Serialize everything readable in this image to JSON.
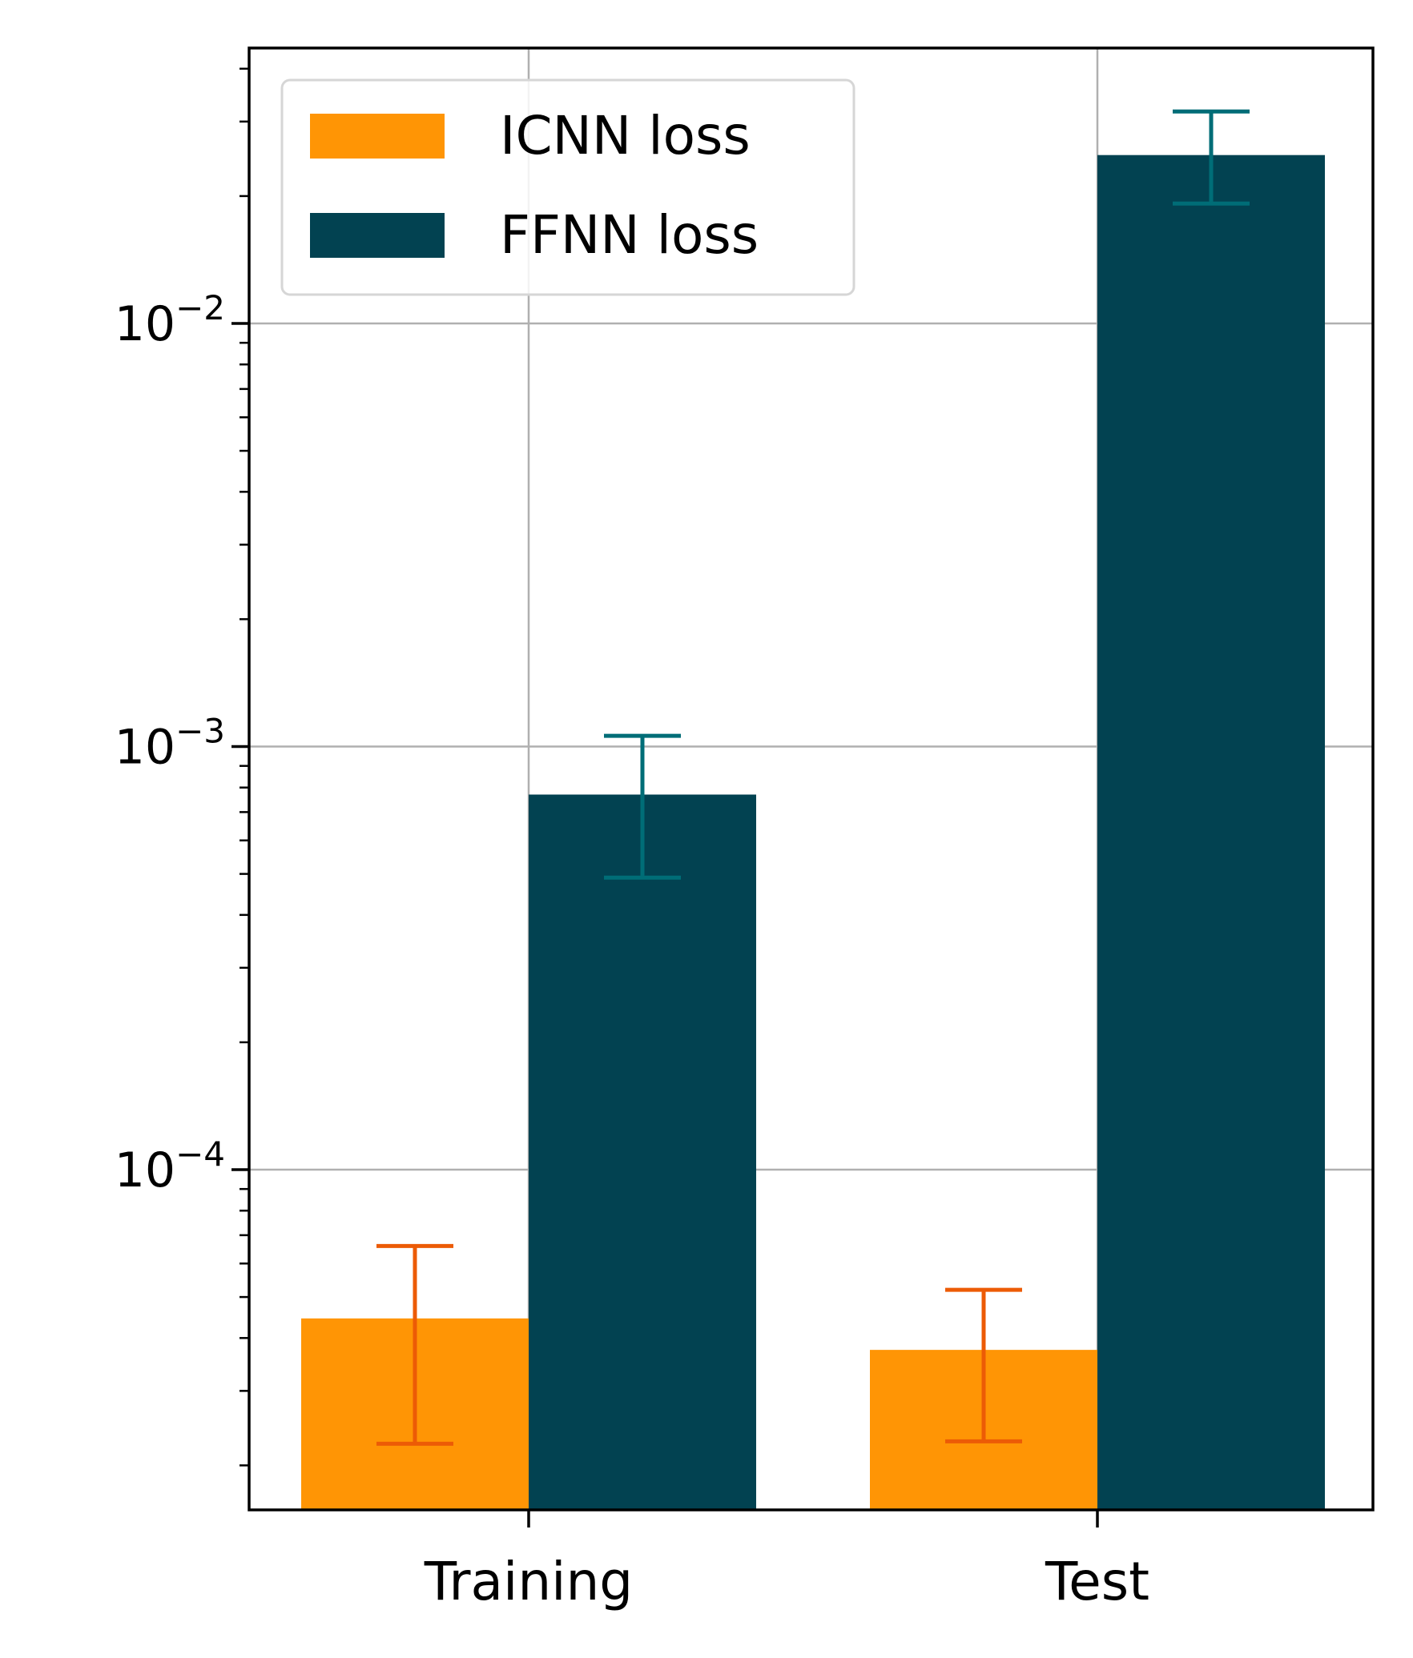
{
  "chart_data": {
    "type": "bar",
    "categories": [
      "Training",
      "Test"
    ],
    "series": [
      {
        "name": "ICNN loss",
        "color": "#ff9505",
        "error_color": "#ec5b06",
        "values": [
          4.45e-05,
          3.75e-05
        ],
        "error_low": [
          2.25e-05,
          2.28e-05
        ],
        "error_high": [
          6.6e-05,
          5.2e-05
        ]
      },
      {
        "name": "FFNN loss",
        "color": "#024251",
        "error_color": "#006d77",
        "values": [
          0.00077,
          0.025
        ],
        "error_low": [
          0.00049,
          0.0192
        ],
        "error_high": [
          0.00106,
          0.0317
        ]
      }
    ],
    "yscale": "log",
    "ylim": [
      1.7e-05,
      0.042
    ],
    "y_ticks": [
      {
        "value": 0.0001,
        "base": "10",
        "exp": "−4"
      },
      {
        "value": 0.001,
        "base": "10",
        "exp": "−3"
      },
      {
        "value": 0.01,
        "base": "10",
        "exp": "−2"
      }
    ],
    "grid": true,
    "legend_position": "top-left"
  }
}
